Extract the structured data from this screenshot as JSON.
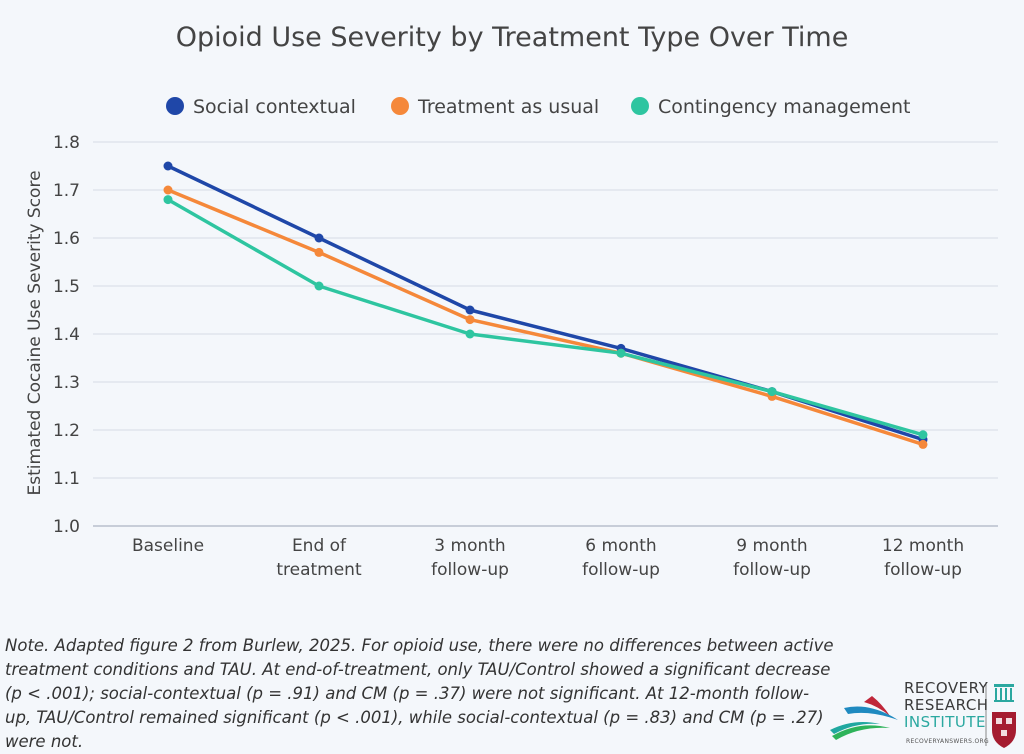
{
  "chart_data": {
    "type": "line",
    "title": "Opioid Use Severity by Treatment Type Over Time",
    "ylabel": "Estimated Cocaine Use Severity Score",
    "xlabel": "",
    "categories": [
      [
        "Baseline"
      ],
      [
        "End of",
        "treatment"
      ],
      [
        "3 month",
        "follow-up"
      ],
      [
        "6 month",
        "follow-up"
      ],
      [
        "9 month",
        "follow-up"
      ],
      [
        "12 month",
        "follow-up"
      ]
    ],
    "ylim": [
      1.0,
      1.8
    ],
    "yticks": [
      "1.0",
      "1.1",
      "1.2",
      "1.3",
      "1.4",
      "1.5",
      "1.6",
      "1.7",
      "1.8"
    ],
    "grid": true,
    "legend_position": "top",
    "series": [
      {
        "name": "Social contextual",
        "color": "#1f47a8",
        "values": [
          1.75,
          1.6,
          1.45,
          1.37,
          1.28,
          1.18
        ]
      },
      {
        "name": "Treatment as usual",
        "color": "#f5883a",
        "values": [
          1.7,
          1.57,
          1.43,
          1.36,
          1.27,
          1.17
        ]
      },
      {
        "name": "Contingency management",
        "color": "#2ec5a0",
        "values": [
          1.68,
          1.5,
          1.4,
          1.36,
          1.28,
          1.19
        ]
      }
    ]
  },
  "note": "Note. Adapted figure 2 from Burlew, 2025. For opioid use, there were no differences between active treatment conditions and TAU. At end-of-treatment, only TAU/Control showed a significant decrease (p < .001); social-contextual (p = .91) and CM (p = .37) were not significant. At 12-month follow-up, TAU/Control remained significant (p < .001), while social-contextual (p = .83) and CM (p = .27) were not.",
  "logo": {
    "line1": "RECOVERY",
    "line2": "RESEARCH",
    "line3": "INSTITUTE",
    "url": "RECOVERYANSWERS.ORG"
  }
}
